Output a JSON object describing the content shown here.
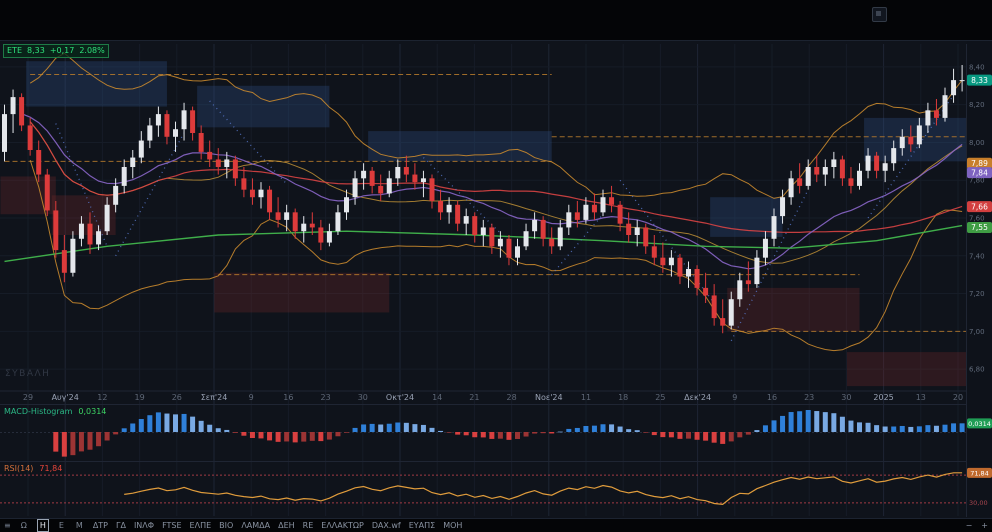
{
  "symbol_badge": {
    "symbol": "ETE",
    "price": "8,33",
    "change": "+0,17",
    "change_pct": "2.08%"
  },
  "watermark": "ΣΥΒΑΛΗ",
  "indicators": {
    "macd": {
      "label": "MACD-Histogram",
      "value": "0,0314"
    },
    "rsi": {
      "label": "RSI(14)",
      "value": "71,84"
    }
  },
  "toolbar": {
    "menu_icon": "≡",
    "timeframes": [
      {
        "label": "Ω"
      },
      {
        "label": "Η",
        "active": true
      },
      {
        "label": "Ε"
      },
      {
        "label": "Μ"
      }
    ],
    "tabs": [
      "ΔΤΡ",
      "ΓΔ",
      "ΙΝΛΦ",
      "FTSE",
      "ΕΛΠΕ",
      "ΒΙΟ",
      "ΛΑΜΔΑ",
      "ΔΕΗ",
      "RE",
      "ΕΛΛΑΚΤΩΡ",
      "DAX.wf",
      "ΕΥΑΠΣ",
      "ΜΟΗ"
    ],
    "zoom_out": "−",
    "zoom_in": "+"
  },
  "chart_data": {
    "type": "candlestick",
    "symbol": "ETE",
    "interval": "D",
    "price_range": [
      6.7,
      8.5
    ],
    "time_axis": [
      {
        "t": "29"
      },
      {
        "t": "Αυγ'24",
        "m": 1
      },
      {
        "t": "12"
      },
      {
        "t": "19"
      },
      {
        "t": "26"
      },
      {
        "t": "Σεπ'24",
        "m": 1
      },
      {
        "t": "9"
      },
      {
        "t": "16"
      },
      {
        "t": "23"
      },
      {
        "t": "30"
      },
      {
        "t": "Οκτ'24",
        "m": 1
      },
      {
        "t": "14"
      },
      {
        "t": "21"
      },
      {
        "t": "28"
      },
      {
        "t": "Νοε'24",
        "m": 1
      },
      {
        "t": "11"
      },
      {
        "t": "18"
      },
      {
        "t": "25"
      },
      {
        "t": "Δεκ'24",
        "m": 1
      },
      {
        "t": "9"
      },
      {
        "t": "16"
      },
      {
        "t": "23"
      },
      {
        "t": "30"
      },
      {
        "t": "2025",
        "m": 1
      },
      {
        "t": "13"
      },
      {
        "t": "20"
      }
    ],
    "price_axis": {
      "gridlines": [
        8.4,
        8.2,
        8.0,
        7.8,
        7.6,
        7.4,
        7.2,
        7.0,
        6.8
      ],
      "badges": [
        {
          "text": "8,33",
          "value": 8.33,
          "bg": "#089981"
        },
        {
          "text": "7,89",
          "value": 7.89,
          "bg": "#c87f2a"
        },
        {
          "text": "7,84",
          "value": 7.84,
          "bg": "#7e63c0"
        },
        {
          "text": "7,66",
          "value": 7.66,
          "bg": "#d23f3f"
        },
        {
          "text": "7,55",
          "value": 7.55,
          "bg": "#3f9d44"
        }
      ]
    },
    "candles": [
      [
        7.95,
        8.2,
        7.9,
        8.15
      ],
      [
        8.15,
        8.28,
        8.05,
        8.24
      ],
      [
        8.24,
        8.26,
        8.06,
        8.09
      ],
      [
        8.09,
        8.13,
        7.93,
        7.96
      ],
      [
        7.96,
        8.01,
        7.79,
        7.83
      ],
      [
        7.83,
        7.86,
        7.61,
        7.64
      ],
      [
        7.64,
        7.69,
        7.39,
        7.43
      ],
      [
        7.43,
        7.51,
        7.26,
        7.31
      ],
      [
        7.31,
        7.53,
        7.29,
        7.49
      ],
      [
        7.49,
        7.61,
        7.45,
        7.57
      ],
      [
        7.57,
        7.63,
        7.41,
        7.46
      ],
      [
        7.46,
        7.56,
        7.43,
        7.53
      ],
      [
        7.53,
        7.71,
        7.51,
        7.67
      ],
      [
        7.67,
        7.81,
        7.63,
        7.77
      ],
      [
        7.77,
        7.91,
        7.73,
        7.87
      ],
      [
        7.87,
        7.96,
        7.81,
        7.92
      ],
      [
        7.92,
        8.06,
        7.89,
        8.01
      ],
      [
        8.01,
        8.13,
        7.97,
        8.09
      ],
      [
        8.09,
        8.19,
        8.03,
        8.15
      ],
      [
        8.15,
        8.17,
        7.99,
        8.03
      ],
      [
        8.03,
        8.11,
        7.95,
        8.07
      ],
      [
        8.07,
        8.21,
        8.01,
        8.17
      ],
      [
        8.17,
        8.19,
        8.01,
        8.05
      ],
      [
        8.05,
        8.09,
        7.91,
        7.95
      ],
      [
        7.95,
        8.01,
        7.87,
        7.91
      ],
      [
        7.91,
        7.97,
        7.83,
        7.87
      ],
      [
        7.87,
        7.95,
        7.81,
        7.91
      ],
      [
        7.91,
        7.93,
        7.77,
        7.81
      ],
      [
        7.81,
        7.87,
        7.71,
        7.75
      ],
      [
        7.75,
        7.81,
        7.67,
        7.71
      ],
      [
        7.71,
        7.79,
        7.65,
        7.75
      ],
      [
        7.75,
        7.77,
        7.59,
        7.63
      ],
      [
        7.63,
        7.71,
        7.55,
        7.59
      ],
      [
        7.59,
        7.67,
        7.53,
        7.63
      ],
      [
        7.63,
        7.65,
        7.49,
        7.53
      ],
      [
        7.53,
        7.61,
        7.47,
        7.57
      ],
      [
        7.57,
        7.63,
        7.51,
        7.55
      ],
      [
        7.55,
        7.59,
        7.43,
        7.47
      ],
      [
        7.47,
        7.57,
        7.45,
        7.53
      ],
      [
        7.53,
        7.67,
        7.51,
        7.63
      ],
      [
        7.63,
        7.75,
        7.59,
        7.71
      ],
      [
        7.71,
        7.85,
        7.67,
        7.81
      ],
      [
        7.81,
        7.89,
        7.75,
        7.85
      ],
      [
        7.85,
        7.87,
        7.73,
        7.77
      ],
      [
        7.77,
        7.83,
        7.69,
        7.73
      ],
      [
        7.73,
        7.85,
        7.71,
        7.81
      ],
      [
        7.81,
        7.91,
        7.77,
        7.87
      ],
      [
        7.87,
        7.93,
        7.79,
        7.83
      ],
      [
        7.83,
        7.89,
        7.75,
        7.79
      ],
      [
        7.79,
        7.85,
        7.71,
        7.81
      ],
      [
        7.81,
        7.83,
        7.65,
        7.69
      ],
      [
        7.69,
        7.75,
        7.59,
        7.63
      ],
      [
        7.63,
        7.71,
        7.57,
        7.67
      ],
      [
        7.67,
        7.69,
        7.53,
        7.57
      ],
      [
        7.57,
        7.65,
        7.51,
        7.61
      ],
      [
        7.61,
        7.63,
        7.47,
        7.51
      ],
      [
        7.51,
        7.59,
        7.45,
        7.55
      ],
      [
        7.55,
        7.57,
        7.41,
        7.45
      ],
      [
        7.45,
        7.53,
        7.39,
        7.49
      ],
      [
        7.49,
        7.51,
        7.35,
        7.39
      ],
      [
        7.39,
        7.49,
        7.35,
        7.45
      ],
      [
        7.45,
        7.57,
        7.43,
        7.53
      ],
      [
        7.53,
        7.63,
        7.49,
        7.59
      ],
      [
        7.59,
        7.61,
        7.45,
        7.49
      ],
      [
        7.49,
        7.55,
        7.41,
        7.45
      ],
      [
        7.45,
        7.59,
        7.43,
        7.55
      ],
      [
        7.55,
        7.67,
        7.51,
        7.63
      ],
      [
        7.63,
        7.69,
        7.55,
        7.59
      ],
      [
        7.59,
        7.71,
        7.57,
        7.67
      ],
      [
        7.67,
        7.73,
        7.59,
        7.63
      ],
      [
        7.63,
        7.75,
        7.61,
        7.71
      ],
      [
        7.71,
        7.77,
        7.63,
        7.67
      ],
      [
        7.67,
        7.69,
        7.53,
        7.57
      ],
      [
        7.57,
        7.63,
        7.47,
        7.51
      ],
      [
        7.51,
        7.59,
        7.45,
        7.55
      ],
      [
        7.55,
        7.57,
        7.41,
        7.45
      ],
      [
        7.45,
        7.51,
        7.35,
        7.39
      ],
      [
        7.39,
        7.47,
        7.31,
        7.35
      ],
      [
        7.35,
        7.43,
        7.29,
        7.39
      ],
      [
        7.39,
        7.41,
        7.25,
        7.29
      ],
      [
        7.29,
        7.37,
        7.23,
        7.33
      ],
      [
        7.33,
        7.35,
        7.19,
        7.23
      ],
      [
        7.23,
        7.31,
        7.15,
        7.19
      ],
      [
        7.19,
        7.25,
        7.03,
        7.07
      ],
      [
        7.07,
        7.17,
        6.99,
        7.03
      ],
      [
        7.03,
        7.21,
        7.01,
        7.17
      ],
      [
        7.17,
        7.31,
        7.13,
        7.27
      ],
      [
        7.27,
        7.37,
        7.21,
        7.25
      ],
      [
        7.25,
        7.43,
        7.23,
        7.39
      ],
      [
        7.39,
        7.53,
        7.35,
        7.49
      ],
      [
        7.49,
        7.65,
        7.45,
        7.61
      ],
      [
        7.61,
        7.75,
        7.57,
        7.71
      ],
      [
        7.71,
        7.85,
        7.67,
        7.81
      ],
      [
        7.81,
        7.89,
        7.73,
        7.77
      ],
      [
        7.77,
        7.91,
        7.75,
        7.87
      ],
      [
        7.87,
        7.93,
        7.79,
        7.83
      ],
      [
        7.83,
        7.91,
        7.77,
        7.87
      ],
      [
        7.87,
        7.95,
        7.81,
        7.91
      ],
      [
        7.91,
        7.93,
        7.77,
        7.81
      ],
      [
        7.81,
        7.87,
        7.73,
        7.77
      ],
      [
        7.77,
        7.89,
        7.75,
        7.85
      ],
      [
        7.85,
        7.97,
        7.81,
        7.93
      ],
      [
        7.93,
        7.95,
        7.81,
        7.85
      ],
      [
        7.85,
        7.93,
        7.79,
        7.89
      ],
      [
        7.89,
        8.01,
        7.85,
        7.97
      ],
      [
        7.97,
        8.07,
        7.93,
        8.03
      ],
      [
        8.03,
        8.09,
        7.95,
        7.99
      ],
      [
        7.99,
        8.13,
        7.97,
        8.09
      ],
      [
        8.09,
        8.21,
        8.05,
        8.17
      ],
      [
        8.17,
        8.23,
        8.09,
        8.13
      ],
      [
        8.13,
        8.29,
        8.11,
        8.25
      ],
      [
        8.25,
        8.39,
        8.21,
        8.33
      ],
      [
        8.33,
        8.41,
        8.27,
        8.33
      ]
    ],
    "ma_long": [
      [
        0,
        7.37
      ],
      [
        12,
        7.45
      ],
      [
        25,
        7.51
      ],
      [
        40,
        7.53
      ],
      [
        55,
        7.51
      ],
      [
        70,
        7.48
      ],
      [
        82,
        7.45
      ],
      [
        92,
        7.44
      ],
      [
        102,
        7.48
      ],
      [
        112,
        7.56
      ]
    ],
    "zones": [
      {
        "side": "supply",
        "i": [
          3,
          19
        ],
        "p": [
          8.19,
          8.43
        ]
      },
      {
        "side": "supply",
        "i": [
          23,
          38
        ],
        "p": [
          8.08,
          8.3
        ]
      },
      {
        "side": "supply",
        "i": [
          43,
          64
        ],
        "p": [
          7.9,
          8.06
        ]
      },
      {
        "side": "supply",
        "i": [
          83,
          91
        ],
        "p": [
          7.5,
          7.71
        ]
      },
      {
        "side": "supply",
        "i": [
          101,
          113
        ],
        "p": [
          7.9,
          8.13
        ]
      },
      {
        "side": "demand",
        "i": [
          0,
          6
        ],
        "p": [
          7.62,
          7.82
        ]
      },
      {
        "side": "demand",
        "i": [
          6,
          13
        ],
        "p": [
          7.51,
          7.72
        ]
      },
      {
        "side": "demand",
        "i": [
          25,
          45
        ],
        "p": [
          7.1,
          7.31
        ]
      },
      {
        "side": "demand",
        "i": [
          85,
          100
        ],
        "p": [
          7.0,
          7.23
        ]
      },
      {
        "side": "demand",
        "i": [
          99,
          113
        ],
        "p": [
          6.71,
          6.89
        ]
      }
    ],
    "levels": [
      {
        "p": 8.36,
        "i": [
          3,
          64
        ]
      },
      {
        "p": 8.03,
        "i": [
          64,
          113
        ]
      },
      {
        "p": 7.9,
        "i": [
          0,
          64
        ]
      },
      {
        "p": 7.3,
        "i": [
          25,
          100
        ]
      },
      {
        "p": 7.0,
        "i": [
          85,
          113
        ]
      }
    ],
    "dotted": [
      [
        6,
        8.1,
        12,
        7.45
      ],
      [
        13,
        7.4,
        21,
        8.05
      ],
      [
        24,
        8.22,
        33,
        7.78
      ],
      [
        49,
        7.92,
        58,
        7.52
      ],
      [
        64,
        7.3,
        70,
        7.62
      ],
      [
        72,
        7.8,
        83,
        7.15
      ],
      [
        85,
        6.95,
        94,
        7.75
      ],
      [
        101,
        7.6,
        111,
        8.25
      ]
    ],
    "indicator_panels": {
      "macd": {
        "type": "histogram",
        "params": [
          12,
          26,
          9
        ],
        "last": 0.0314
      },
      "rsi": {
        "type": "line",
        "period": 14,
        "last": 71.84,
        "levels": [
          70,
          30
        ]
      }
    }
  }
}
